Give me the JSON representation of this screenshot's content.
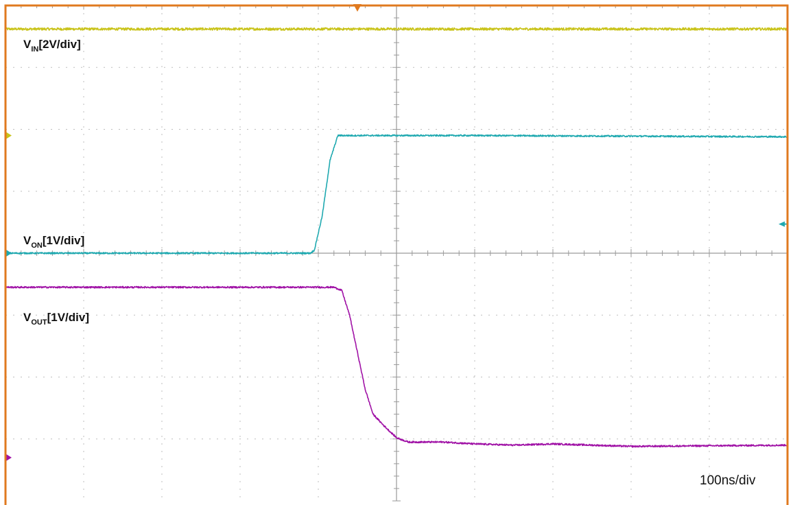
{
  "colors": {
    "frame": "#e07a1f",
    "grid": "#bdbdbd",
    "axis": "#9a9a9a",
    "vin": "#c9c31a",
    "von": "#1fa9b0",
    "vout": "#a012a6"
  },
  "labels": {
    "vin": {
      "main": "V",
      "sub": "IN",
      "scale": "[2V/div]"
    },
    "von": {
      "main": "V",
      "sub": "ON",
      "scale": "[1V/div]"
    },
    "vout": {
      "main": "V",
      "sub": "OUT",
      "scale": "[1V/div]"
    },
    "timebase": "100ns/div"
  },
  "chart_data": {
    "type": "line",
    "title": "",
    "xlabel": "",
    "ylabel": "",
    "grid": true,
    "x_divisions": 10,
    "y_divisions": 8,
    "x_unit": "div",
    "xlim": [
      0,
      10
    ],
    "ylim": [
      0,
      8
    ],
    "trigger_marker": "top",
    "series": [
      {
        "name": "VIN[2V/div]",
        "color": "vin",
        "ground_marker_div": 5.9,
        "noise_div": 0.02,
        "points": [
          [
            0,
            7.62
          ],
          [
            10,
            7.62
          ]
        ]
      },
      {
        "name": "VON[1V/div]",
        "color": "von",
        "ground_marker_div": 4.0,
        "right_marker_div": 4.47,
        "noise_div": 0.012,
        "points": [
          [
            0,
            4.0
          ],
          [
            3.9,
            4.0
          ],
          [
            3.95,
            4.05
          ],
          [
            4.05,
            4.6
          ],
          [
            4.15,
            5.5
          ],
          [
            4.25,
            5.9
          ],
          [
            6.0,
            5.9
          ],
          [
            10,
            5.88
          ]
        ]
      },
      {
        "name": "VOUT[1V/div]",
        "color": "vout",
        "ground_marker_div": 0.7,
        "noise_div": 0.013,
        "points": [
          [
            0,
            3.45
          ],
          [
            4.2,
            3.45
          ],
          [
            4.3,
            3.4
          ],
          [
            4.4,
            3.0
          ],
          [
            4.5,
            2.4
          ],
          [
            4.6,
            1.8
          ],
          [
            4.7,
            1.4
          ],
          [
            4.85,
            1.2
          ],
          [
            5.0,
            1.02
          ],
          [
            5.15,
            0.95
          ],
          [
            5.6,
            0.95
          ],
          [
            6.0,
            0.92
          ],
          [
            6.5,
            0.9
          ],
          [
            7.0,
            0.92
          ],
          [
            8.0,
            0.88
          ],
          [
            10,
            0.9
          ]
        ]
      }
    ]
  }
}
